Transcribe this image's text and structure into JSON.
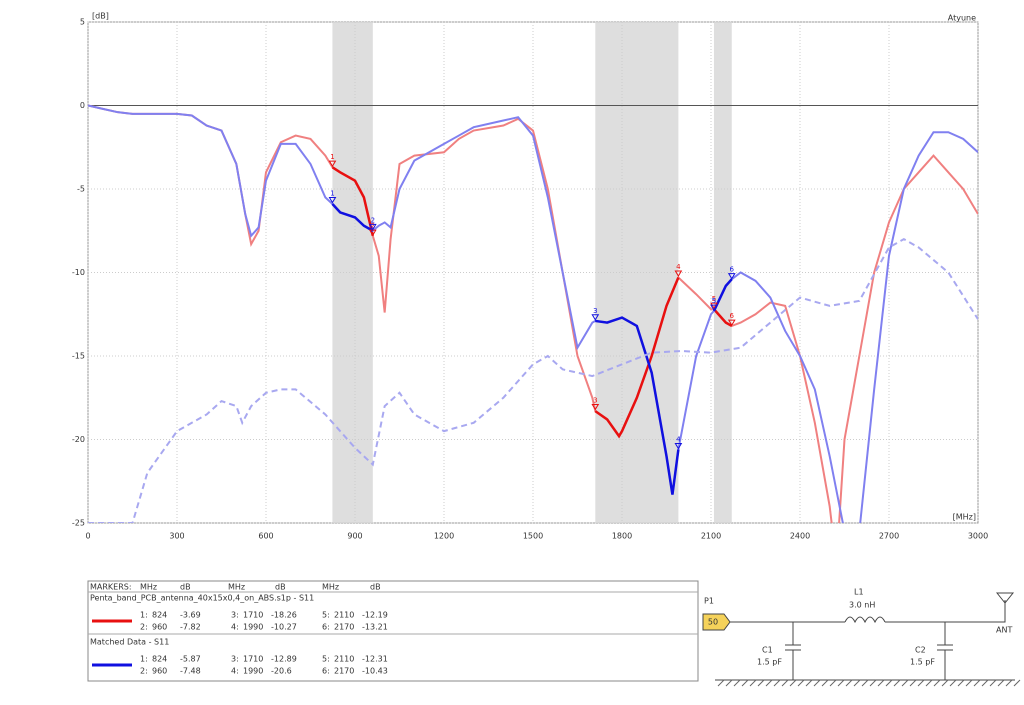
{
  "chart_data": {
    "type": "line",
    "app_name": "Atyune",
    "y_unit": "[dB]",
    "x_unit": "[MHz]",
    "xlim": [
      0,
      3000
    ],
    "ylim": [
      -25,
      5
    ],
    "xticks": [
      0,
      300,
      600,
      900,
      1200,
      1500,
      1800,
      2100,
      2400,
      2700,
      3000
    ],
    "yticks": [
      5,
      0,
      -5,
      -10,
      -15,
      -20,
      -25
    ],
    "grid": true,
    "highlight_bands": [
      [
        824,
        960
      ],
      [
        1710,
        1990
      ],
      [
        2110,
        2170
      ]
    ],
    "series": [
      {
        "name": "Penta_band_PCB_antenna_40x15x0,4_on_ABS.s1p - S11",
        "color": "#f08080",
        "highlight_color": "#e81010",
        "dashed": false,
        "x": [
          0,
          50,
          100,
          150,
          200,
          250,
          300,
          350,
          400,
          450,
          500,
          530,
          550,
          575,
          600,
          650,
          700,
          750,
          800,
          824,
          850,
          900,
          930,
          960,
          980,
          1000,
          1020,
          1050,
          1100,
          1200,
          1250,
          1300,
          1400,
          1450,
          1500,
          1550,
          1600,
          1650,
          1700,
          1710,
          1750,
          1790,
          1800,
          1850,
          1900,
          1950,
          1990,
          2050,
          2100,
          2110,
          2150,
          2170,
          2200,
          2250,
          2300,
          2350,
          2400,
          2450,
          2500,
          2510,
          2530,
          2550,
          2600,
          2650,
          2700,
          2750,
          2800,
          2850,
          2900,
          2950,
          3000
        ],
        "values": [
          0,
          -0.2,
          -0.4,
          -0.5,
          -0.5,
          -0.5,
          -0.5,
          -0.6,
          -1.2,
          -1.5,
          -3.5,
          -6.5,
          -8.3,
          -7.5,
          -4,
          -2.2,
          -1.8,
          -2,
          -3,
          -3.7,
          -4,
          -4.5,
          -5.5,
          -7.8,
          -9,
          -12.4,
          -8,
          -3.5,
          -3,
          -2.8,
          -2,
          -1.5,
          -1.2,
          -0.8,
          -1.5,
          -5,
          -10,
          -15,
          -17.5,
          -18.3,
          -18.8,
          -19.8,
          -19.5,
          -17.5,
          -15,
          -12,
          -10.3,
          -11.3,
          -12.2,
          -12.2,
          -13,
          -13.2,
          -13,
          -12.5,
          -11.8,
          -12,
          -15,
          -19,
          -24,
          -25.5,
          -25.5,
          -20,
          -15,
          -10,
          -7,
          -5,
          -4,
          -3,
          -4,
          -5,
          -6.5
        ]
      },
      {
        "name": "Matched Data - S11",
        "color": "#8080f0",
        "highlight_color": "#1010e0",
        "dashed": false,
        "x": [
          0,
          50,
          100,
          150,
          200,
          250,
          300,
          350,
          400,
          450,
          500,
          530,
          550,
          575,
          600,
          650,
          700,
          750,
          800,
          824,
          850,
          900,
          930,
          960,
          980,
          1000,
          1020,
          1050,
          1100,
          1200,
          1250,
          1300,
          1400,
          1450,
          1500,
          1550,
          1600,
          1650,
          1700,
          1710,
          1750,
          1800,
          1850,
          1900,
          1950,
          1970,
          1990,
          2050,
          2100,
          2110,
          2150,
          2170,
          2200,
          2250,
          2300,
          2350,
          2400,
          2450,
          2500,
          2550,
          2600,
          2650,
          2700,
          2750,
          2800,
          2850,
          2900,
          2950,
          3000
        ],
        "values": [
          0,
          -0.2,
          -0.4,
          -0.5,
          -0.5,
          -0.5,
          -0.5,
          -0.6,
          -1.2,
          -1.5,
          -3.5,
          -6.5,
          -7.8,
          -7.3,
          -4.5,
          -2.3,
          -2.3,
          -3.5,
          -5.5,
          -5.9,
          -6.4,
          -6.7,
          -7.2,
          -7.5,
          -7.2,
          -7,
          -7.3,
          -5,
          -3.3,
          -2.3,
          -1.8,
          -1.3,
          -0.9,
          -0.7,
          -1.8,
          -5.5,
          -10,
          -14.5,
          -13,
          -12.9,
          -13,
          -12.7,
          -13.2,
          -16,
          -21,
          -23.3,
          -20.6,
          -15,
          -12.5,
          -12.3,
          -10.8,
          -10.4,
          -10,
          -10.5,
          -11.5,
          -13.5,
          -15,
          -17,
          -21,
          -25.5,
          -25.5,
          -17,
          -9,
          -5,
          -3,
          -1.6,
          -1.6,
          -2,
          -2.8
        ]
      },
      {
        "color": "#a8a8f0",
        "dashed": true,
        "x": [
          0,
          150,
          200,
          300,
          400,
          450,
          500,
          520,
          550,
          600,
          650,
          700,
          800,
          900,
          960,
          1000,
          1050,
          1100,
          1200,
          1300,
          1400,
          1500,
          1550,
          1600,
          1700,
          1800,
          1900,
          2000,
          2100,
          2200,
          2300,
          2400,
          2500,
          2600,
          2700,
          2750,
          2800,
          2900,
          3000
        ],
        "values": [
          -25,
          -25,
          -22,
          -19.5,
          -18.5,
          -17.7,
          -18,
          -19,
          -18,
          -17.2,
          -17,
          -17,
          -18.5,
          -20.5,
          -21.5,
          -18,
          -17.2,
          -18.5,
          -19.5,
          -19,
          -17.5,
          -15.5,
          -15,
          -15.8,
          -16.2,
          -15.5,
          -14.8,
          -14.7,
          -14.8,
          -14.5,
          -13,
          -11.5,
          -12,
          -11.7,
          -8.5,
          -8,
          -8.5,
          -10,
          -12.8
        ]
      }
    ]
  },
  "markers_table": {
    "title": "MARKERS:",
    "headers": [
      "MHz",
      "dB",
      "MHz",
      "dB",
      "MHz",
      "dB"
    ],
    "rows": [
      {
        "name": "Penta_band_PCB_antenna_40x15x0,4_on_ABS.s1p - S11",
        "color": "#e81010",
        "points": [
          {
            "n": "1",
            "key": "1:",
            "mhz": 824,
            "db": -3.69
          },
          {
            "n": "2",
            "key": "2:",
            "mhz": 960,
            "db": -7.82
          },
          {
            "n": "3",
            "key": "3:",
            "mhz": 1710,
            "db": -18.26
          },
          {
            "n": "4",
            "key": "4:",
            "mhz": 1990,
            "db": -10.27
          },
          {
            "n": "5",
            "key": "5:",
            "mhz": 2110,
            "db": -12.19
          },
          {
            "n": "6",
            "key": "6:",
            "mhz": 2170,
            "db": -13.21
          }
        ]
      },
      {
        "name": "Matched Data - S11",
        "color": "#1010e0",
        "points": [
          {
            "n": "1",
            "key": "1:",
            "mhz": 824,
            "db": -5.87
          },
          {
            "n": "2",
            "key": "2:",
            "mhz": 960,
            "db": -7.48
          },
          {
            "n": "3",
            "key": "3:",
            "mhz": 1710,
            "db": -12.89
          },
          {
            "n": "4",
            "key": "4:",
            "mhz": 1990,
            "db": -20.6
          },
          {
            "n": "5",
            "key": "5:",
            "mhz": 2110,
            "db": -12.31
          },
          {
            "n": "6",
            "key": "6:",
            "mhz": 2170,
            "db": -10.43
          }
        ]
      }
    ]
  },
  "schematic": {
    "port": "P1",
    "port_value": "50",
    "l1": "L1",
    "l1_value": "3.0 nH",
    "c1": "C1",
    "c1_value": "1.5 pF",
    "c2": "C2",
    "c2_value": "1.5 pF",
    "antenna": "ANT"
  }
}
